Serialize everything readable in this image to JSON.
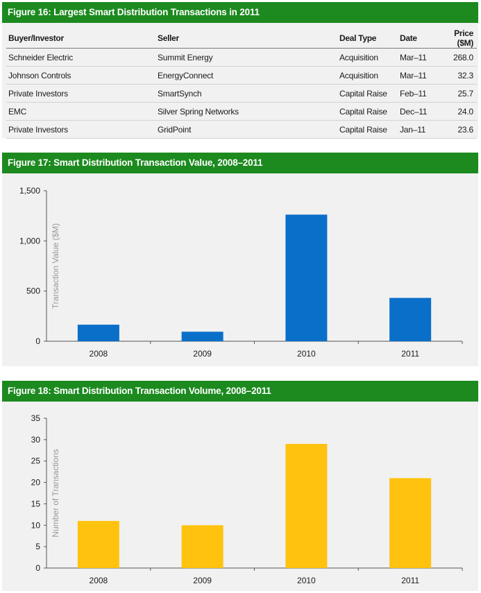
{
  "fig16": {
    "title": "Figure 16: Largest Smart Distribution Transactions in 2011",
    "chart_data": {
      "type": "table",
      "columns": [
        "Buyer/Investor",
        "Seller",
        "Deal Type",
        "Date",
        "Price ($M)"
      ],
      "rows": [
        [
          "Schneider Electric",
          "Summit Energy",
          "Acquisition",
          "Mar–11",
          "268.0"
        ],
        [
          "Johnson Controls",
          "EnergyConnect",
          "Acquisition",
          "Mar–11",
          "32.3"
        ],
        [
          "Private Investors",
          "SmartSynch",
          "Capital Raise",
          "Feb–11",
          "25.7"
        ],
        [
          "EMC",
          "Silver Spring Networks",
          "Capital Raise",
          "Dec–11",
          "24.0"
        ],
        [
          "Private Investors",
          "GridPoint",
          "Capital Raise",
          "Jan–11",
          "23.6"
        ]
      ]
    }
  },
  "fig17": {
    "title": "Figure 17: Smart Distribution Transaction Value, 2008–2011",
    "bar_color": "#0a6fc9",
    "chart_data": {
      "type": "bar",
      "categories": [
        "2008",
        "2009",
        "2010",
        "2011"
      ],
      "values": [
        165,
        95,
        1262,
        432
      ],
      "ylabel": "Transaction Value ($M)",
      "ylim": [
        0,
        1500
      ],
      "yticks": [
        0,
        500,
        1000,
        1500
      ],
      "ytick_labels": [
        "0",
        "500",
        "1,000",
        "1,500"
      ],
      "grid": false
    }
  },
  "fig18": {
    "title": "Figure 18: Smart Distribution Transaction Volume, 2008–2011",
    "bar_color": "#ffc20e",
    "chart_data": {
      "type": "bar",
      "categories": [
        "2008",
        "2009",
        "2010",
        "2011"
      ],
      "values": [
        11,
        10,
        29,
        21
      ],
      "ylabel": "Number of Transactions",
      "ylim": [
        0,
        35
      ],
      "yticks": [
        0,
        5,
        10,
        15,
        20,
        25,
        30,
        35
      ],
      "ytick_labels": [
        "0",
        "5",
        "10",
        "15",
        "20",
        "25",
        "30",
        "35"
      ],
      "grid": false
    }
  }
}
